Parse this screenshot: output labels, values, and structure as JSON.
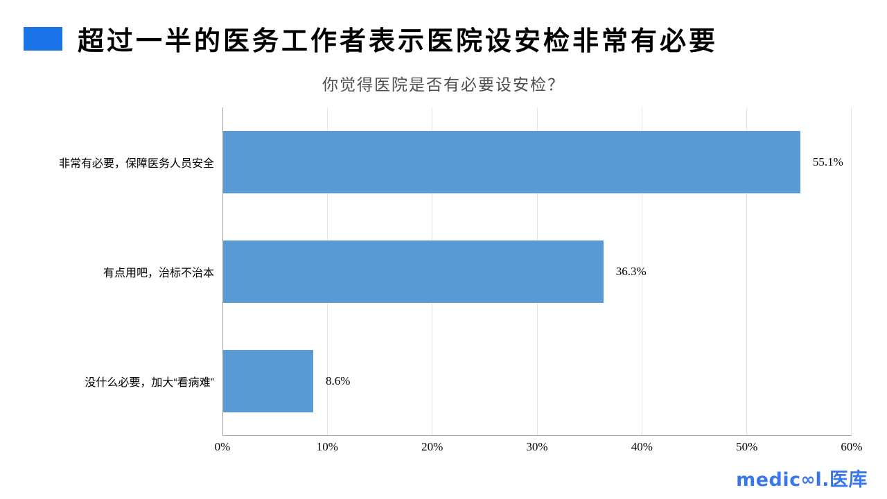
{
  "header": {
    "title": "超过一半的医务工作者表示医院设安检非常有必要",
    "accent_color": "#1A73E8"
  },
  "chart_data": {
    "type": "bar",
    "orientation": "horizontal",
    "title": "你觉得医院是否有必要设安检？",
    "categories": [
      "非常有必要，保障医务人员安全",
      "有点用吧，治标不治本",
      "没什么必要，加大“看病难”"
    ],
    "values": [
      55.1,
      36.3,
      8.6
    ],
    "value_labels": [
      "55.1%",
      "36.3%",
      "8.6%"
    ],
    "xlim": [
      0,
      60
    ],
    "xticklabels": [
      "0%",
      "10%",
      "20%",
      "30%",
      "40%",
      "50%",
      "60%"
    ],
    "grid": "vertical-gridlines",
    "legend": "none",
    "bar_color": "#5B9BD5"
  },
  "footer": {
    "logo_text": "medicool.医库",
    "logo_parts": {
      "pre": "medic",
      "infinity": "∞",
      "post": "l",
      "cjk": ".医库"
    },
    "logo_color": "#3A78EA"
  }
}
